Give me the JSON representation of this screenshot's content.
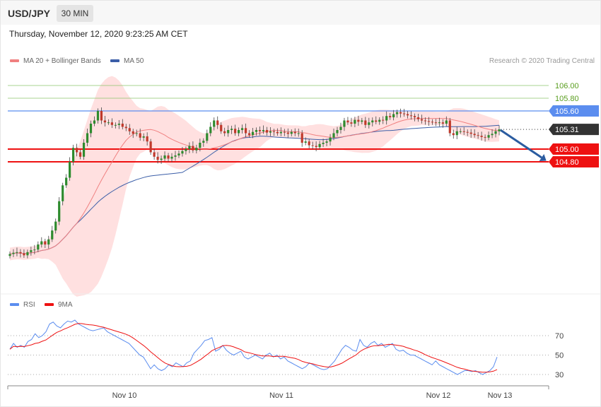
{
  "header": {
    "symbol": "USD/JPY",
    "timeframe": "30 MIN",
    "datetime": "Thursday, November 12, 2020 9:23:25 AM CET"
  },
  "legend": {
    "ma20": "MA 20 + Bollinger Bands",
    "ma50": "MA 50",
    "rsi": "RSI",
    "ma9": "9MA"
  },
  "copyright": "Research © 2020 Trading Central",
  "colors": {
    "bullish": "#2e8b2e",
    "bearish": "#c0392b",
    "bollinger": "#ffd5d5",
    "ma20": "#f08080",
    "ma50": "#3b5ea8",
    "pivot": "#5b8def",
    "support": "#ee1111",
    "resistance_green": "#8dc46b",
    "last_price": "#333333",
    "rsi": "#5b8def",
    "rsi_ma": "#ee1111",
    "arrow": "#2b5ca0"
  },
  "chart_data": [
    {
      "type": "candlestick",
      "ylim": [
        103.5,
        106.3
      ],
      "x_ticks": [
        "Nov 10",
        "Nov 11",
        "Nov 12",
        "Nov 13"
      ],
      "levels": [
        {
          "value": 106.0,
          "label": "106.00",
          "kind": "resistance"
        },
        {
          "value": 105.8,
          "label": "105.80",
          "kind": "resistance"
        },
        {
          "value": 105.6,
          "label": "105.60",
          "kind": "pivot"
        },
        {
          "value": 105.31,
          "label": "105.31",
          "kind": "last"
        },
        {
          "value": 105.0,
          "label": "105.00",
          "kind": "support"
        },
        {
          "value": 104.8,
          "label": "104.80",
          "kind": "support"
        }
      ],
      "last_price": 105.31,
      "forecast": {
        "from": 105.31,
        "to": 104.8,
        "direction": "down"
      },
      "series": [
        {
          "name": "MA 20 + Bollinger Bands"
        },
        {
          "name": "MA 50"
        }
      ],
      "close": [
        103.35,
        103.37,
        103.38,
        103.36,
        103.33,
        103.38,
        103.41,
        103.42,
        103.5,
        103.55,
        103.5,
        103.58,
        103.72,
        103.86,
        104.18,
        104.43,
        104.55,
        104.8,
        105.02,
        104.95,
        104.88,
        105.1,
        105.25,
        105.4,
        105.45,
        105.6,
        105.45,
        105.42,
        105.42,
        105.38,
        105.38,
        105.4,
        105.35,
        105.33,
        105.28,
        105.24,
        105.25,
        105.18,
        105.2,
        105.12,
        104.95,
        104.88,
        104.83,
        104.85,
        104.9,
        104.85,
        104.88,
        104.9,
        104.93,
        104.97,
        105.0,
        105.05,
        104.98,
        105.02,
        105.1,
        105.13,
        105.25,
        105.35,
        105.45,
        105.38,
        105.28,
        105.25,
        105.3,
        105.32,
        105.25,
        105.3,
        105.33,
        105.25,
        105.22,
        105.27,
        105.3,
        105.28,
        105.3,
        105.26,
        105.28,
        105.27,
        105.25,
        105.27,
        105.26,
        105.24,
        105.27,
        105.25,
        105.25,
        105.1,
        105.12,
        105.06,
        105.05,
        105.03,
        105.08,
        105.1,
        105.12,
        105.18,
        105.25,
        105.3,
        105.35,
        105.45,
        105.42,
        105.4,
        105.46,
        105.43,
        105.45,
        105.38,
        105.42,
        105.45,
        105.43,
        105.46,
        105.45,
        105.52,
        105.5,
        105.55,
        105.58,
        105.56,
        105.55,
        105.53,
        105.52,
        105.5,
        105.47,
        105.45,
        105.44,
        105.43,
        105.42,
        105.41,
        105.42,
        105.4,
        105.45,
        105.25,
        105.22,
        105.28,
        105.28,
        105.27,
        105.26,
        105.24,
        105.22,
        105.21,
        105.19,
        105.18,
        105.22,
        105.24,
        105.28,
        105.31
      ],
      "rsi": [
        56,
        62,
        58,
        60,
        58,
        64,
        66,
        72,
        68,
        70,
        74,
        82,
        84,
        80,
        78,
        82,
        85,
        84,
        86,
        82,
        80,
        78,
        76,
        75,
        76,
        77,
        78,
        74,
        72,
        70,
        68,
        66,
        64,
        62,
        58,
        54,
        50,
        48,
        42,
        36,
        40,
        36,
        34,
        36,
        40,
        38,
        42,
        40,
        38,
        42,
        44,
        52,
        56,
        60,
        65,
        66,
        68,
        54,
        56,
        60,
        55,
        52,
        50,
        52,
        54,
        48,
        46,
        48,
        50,
        48,
        46,
        50,
        52,
        48,
        50,
        46,
        48,
        44,
        42,
        40,
        38,
        36,
        38,
        42,
        40,
        38,
        36,
        35,
        36,
        40,
        44,
        50,
        56,
        60,
        58,
        55,
        54,
        66,
        60,
        58,
        62,
        64,
        60,
        62,
        58,
        60,
        62,
        56,
        54,
        55,
        52,
        50,
        50,
        48,
        46,
        44,
        42,
        40,
        44,
        40,
        38,
        36,
        34,
        32,
        30,
        32,
        34,
        34,
        33,
        34,
        32,
        30,
        32,
        34,
        38,
        48
      ]
    }
  ]
}
